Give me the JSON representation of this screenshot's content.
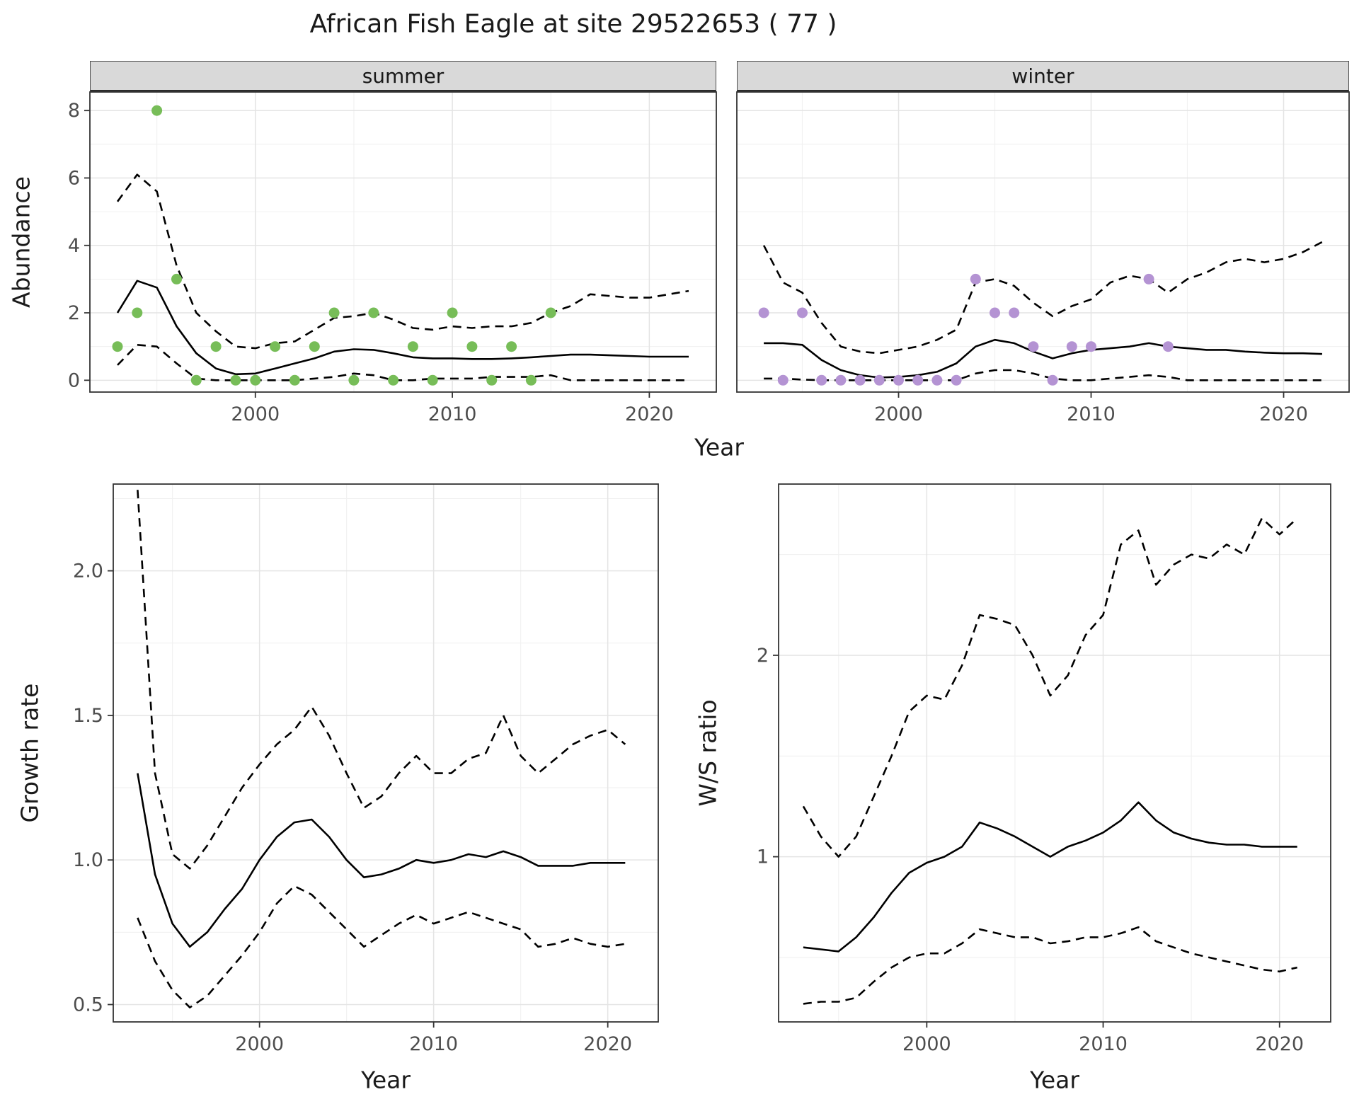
{
  "title": "African Fish Eagle at site 29522653 ( 77 )",
  "top_row": {
    "ylabel": "Abundance",
    "xlabel": "Year",
    "facets": [
      "summer",
      "winter"
    ]
  },
  "bottom_left": {
    "ylabel": "Growth rate",
    "xlabel": "Year"
  },
  "bottom_right": {
    "ylabel": "W/S ratio",
    "xlabel": "Year"
  },
  "colors": {
    "summer_points": "#77bd58",
    "winter_points": "#b493d3",
    "line": "#000000",
    "grid_major": "#e4e4e4",
    "grid_minor": "#f1f1f1",
    "strip_fill": "#d9d9d9"
  },
  "chart_data": [
    {
      "type": "line",
      "title": "summer",
      "xlabel": "Year",
      "ylabel": "Abundance",
      "xlim": [
        1991.6,
        2023.4
      ],
      "ylim": [
        -0.35,
        8.55
      ],
      "xticks": [
        2000,
        2010,
        2020
      ],
      "xtick_labels": [
        "2000",
        "2010",
        "2020"
      ],
      "yticks": [
        0,
        2,
        4,
        6,
        8
      ],
      "ytick_labels": [
        "0",
        "2",
        "4",
        "6",
        "8"
      ],
      "xminor": [
        1995,
        2005,
        2015
      ],
      "yminor": [
        1,
        3,
        5,
        7
      ],
      "x": [
        1993,
        1994,
        1995,
        1996,
        1997,
        1998,
        1999,
        2000,
        2001,
        2002,
        2003,
        2004,
        2005,
        2006,
        2007,
        2008,
        2009,
        2010,
        2011,
        2012,
        2013,
        2014,
        2015,
        2016,
        2017,
        2018,
        2019,
        2020,
        2021,
        2022
      ],
      "series": [
        {
          "name": "fit",
          "style": "solid",
          "values": [
            2.0,
            2.95,
            2.75,
            1.6,
            0.8,
            0.35,
            0.18,
            0.2,
            0.35,
            0.5,
            0.65,
            0.85,
            0.92,
            0.9,
            0.8,
            0.68,
            0.65,
            0.65,
            0.63,
            0.63,
            0.65,
            0.68,
            0.72,
            0.76,
            0.76,
            0.74,
            0.72,
            0.7,
            0.7,
            0.7
          ]
        },
        {
          "name": "upper_ci",
          "style": "dashed",
          "values": [
            5.3,
            6.1,
            5.6,
            3.4,
            2.0,
            1.45,
            1.0,
            0.95,
            1.1,
            1.15,
            1.5,
            1.85,
            1.9,
            2.0,
            1.8,
            1.55,
            1.5,
            1.6,
            1.55,
            1.6,
            1.6,
            1.7,
            2.0,
            2.2,
            2.55,
            2.5,
            2.45,
            2.45,
            2.55,
            2.65
          ]
        },
        {
          "name": "lower_ci",
          "style": "dashed",
          "values": [
            0.45,
            1.05,
            1.0,
            0.5,
            0.05,
            0,
            0,
            0,
            0,
            0,
            0.05,
            0.1,
            0.2,
            0.15,
            0,
            0,
            0.05,
            0.05,
            0.05,
            0.1,
            0.1,
            0.1,
            0.15,
            0,
            0,
            0,
            0,
            0,
            0,
            0
          ]
        }
      ],
      "points": {
        "name": "observed-summer",
        "x": [
          1993,
          1994,
          1995,
          1996,
          1997,
          1998,
          1999,
          2000,
          2001,
          2002,
          2003,
          2004,
          2005,
          2006,
          2007,
          2008,
          2009,
          2010,
          2011,
          2012,
          2013,
          2014,
          2015
        ],
        "y": [
          1,
          2,
          8,
          3,
          0,
          1,
          0,
          0,
          1,
          0,
          1,
          2,
          0,
          2,
          0,
          1,
          0,
          2,
          1,
          0,
          1,
          0,
          2
        ]
      }
    },
    {
      "type": "line",
      "title": "winter",
      "xlabel": "Year",
      "ylabel": "Abundance",
      "xlim": [
        1991.6,
        2023.4
      ],
      "ylim": [
        -0.35,
        8.55
      ],
      "xticks": [
        2000,
        2010,
        2020
      ],
      "xtick_labels": [
        "2000",
        "2010",
        "2020"
      ],
      "yticks": [
        0,
        2,
        4,
        6,
        8
      ],
      "ytick_labels": [
        "0",
        "2",
        "4",
        "6",
        "8"
      ],
      "xminor": [
        1995,
        2005,
        2015
      ],
      "yminor": [
        1,
        3,
        5,
        7
      ],
      "x": [
        1993,
        1994,
        1995,
        1996,
        1997,
        1998,
        1999,
        2000,
        2001,
        2002,
        2003,
        2004,
        2005,
        2006,
        2007,
        2008,
        2009,
        2010,
        2011,
        2012,
        2013,
        2014,
        2015,
        2016,
        2017,
        2018,
        2019,
        2020,
        2021,
        2022
      ],
      "series": [
        {
          "name": "fit",
          "style": "solid",
          "values": [
            1.1,
            1.1,
            1.05,
            0.6,
            0.3,
            0.15,
            0.08,
            0.1,
            0.15,
            0.25,
            0.5,
            1.0,
            1.2,
            1.1,
            0.85,
            0.65,
            0.8,
            0.9,
            0.95,
            1.0,
            1.1,
            1.0,
            0.95,
            0.9,
            0.9,
            0.85,
            0.82,
            0.8,
            0.8,
            0.78
          ]
        },
        {
          "name": "upper_ci",
          "style": "dashed",
          "values": [
            4.0,
            2.9,
            2.6,
            1.7,
            1.0,
            0.85,
            0.8,
            0.9,
            1.0,
            1.2,
            1.5,
            2.9,
            3.0,
            2.8,
            2.3,
            1.9,
            2.2,
            2.4,
            2.9,
            3.1,
            3.0,
            2.6,
            3.0,
            3.2,
            3.5,
            3.6,
            3.5,
            3.6,
            3.8,
            4.1
          ]
        },
        {
          "name": "lower_ci",
          "style": "dashed",
          "values": [
            0.05,
            0.05,
            0.02,
            0,
            0,
            0,
            0,
            0,
            0,
            0,
            0,
            0.2,
            0.3,
            0.3,
            0.2,
            0.05,
            0,
            0,
            0.05,
            0.1,
            0.15,
            0.1,
            0,
            0,
            0,
            0,
            0,
            0,
            0,
            0
          ]
        }
      ],
      "points": {
        "name": "observed-winter",
        "x": [
          1993,
          1994,
          1995,
          1996,
          1997,
          1998,
          1999,
          2000,
          2001,
          2002,
          2003,
          2004,
          2005,
          2006,
          2007,
          2008,
          2009,
          2010,
          2013,
          2014
        ],
        "y": [
          2,
          0,
          2,
          0,
          0,
          0,
          0,
          0,
          0,
          0,
          0,
          3,
          2,
          2,
          1,
          0,
          1,
          1,
          3,
          1
        ]
      }
    },
    {
      "type": "line",
      "title": "Growth rate",
      "xlabel": "Year",
      "ylabel": "Growth rate",
      "xlim": [
        1991.6,
        2022.9
      ],
      "ylim": [
        0.44,
        2.3
      ],
      "xticks": [
        2000,
        2010,
        2020
      ],
      "xtick_labels": [
        "2000",
        "2010",
        "2020"
      ],
      "yticks": [
        0.5,
        1.0,
        1.5,
        2.0
      ],
      "ytick_labels": [
        "0.5",
        "1.0",
        "1.5",
        "2.0"
      ],
      "xminor": [
        1995,
        2005,
        2015
      ],
      "yminor": [
        0.75,
        1.25,
        1.75,
        2.25
      ],
      "x": [
        1993,
        1994,
        1995,
        1996,
        1997,
        1998,
        1999,
        2000,
        2001,
        2002,
        2003,
        2004,
        2005,
        2006,
        2007,
        2008,
        2009,
        2010,
        2011,
        2012,
        2013,
        2014,
        2015,
        2016,
        2017,
        2018,
        2019,
        2020,
        2021
      ],
      "series": [
        {
          "name": "fit",
          "style": "solid",
          "values": [
            1.3,
            0.95,
            0.78,
            0.7,
            0.75,
            0.83,
            0.9,
            1.0,
            1.08,
            1.13,
            1.14,
            1.08,
            1.0,
            0.94,
            0.95,
            0.97,
            1.0,
            0.99,
            1.0,
            1.02,
            1.01,
            1.03,
            1.01,
            0.98,
            0.98,
            0.98,
            0.99,
            0.99,
            0.99
          ]
        },
        {
          "name": "upper_ci",
          "style": "dashed",
          "values": [
            2.28,
            1.3,
            1.02,
            0.97,
            1.05,
            1.15,
            1.25,
            1.33,
            1.4,
            1.45,
            1.53,
            1.43,
            1.3,
            1.18,
            1.22,
            1.3,
            1.36,
            1.3,
            1.3,
            1.35,
            1.37,
            1.5,
            1.36,
            1.3,
            1.35,
            1.4,
            1.43,
            1.45,
            1.4
          ]
        },
        {
          "name": "lower_ci",
          "style": "dashed",
          "values": [
            0.8,
            0.65,
            0.55,
            0.49,
            0.53,
            0.6,
            0.67,
            0.75,
            0.85,
            0.91,
            0.88,
            0.82,
            0.76,
            0.7,
            0.74,
            0.78,
            0.81,
            0.78,
            0.8,
            0.82,
            0.8,
            0.78,
            0.76,
            0.7,
            0.71,
            0.73,
            0.71,
            0.7,
            0.71
          ]
        }
      ]
    },
    {
      "type": "line",
      "title": "W/S ratio",
      "xlabel": "Year",
      "ylabel": "W/S ratio",
      "xlim": [
        1991.6,
        2022.9
      ],
      "ylim": [
        0.18,
        2.85
      ],
      "xticks": [
        2000,
        2010,
        2020
      ],
      "xtick_labels": [
        "2000",
        "2010",
        "2020"
      ],
      "yticks": [
        1,
        2
      ],
      "ytick_labels": [
        "1",
        "2"
      ],
      "xminor": [
        1995,
        2005,
        2015
      ],
      "yminor": [
        0.5,
        1.5,
        2.5
      ],
      "x": [
        1993,
        1994,
        1995,
        1996,
        1997,
        1998,
        1999,
        2000,
        2001,
        2002,
        2003,
        2004,
        2005,
        2006,
        2007,
        2008,
        2009,
        2010,
        2011,
        2012,
        2013,
        2014,
        2015,
        2016,
        2017,
        2018,
        2019,
        2020,
        2021
      ],
      "series": [
        {
          "name": "fit",
          "style": "solid",
          "values": [
            0.55,
            0.54,
            0.53,
            0.6,
            0.7,
            0.82,
            0.92,
            0.97,
            1.0,
            1.05,
            1.17,
            1.14,
            1.1,
            1.05,
            1.0,
            1.05,
            1.08,
            1.12,
            1.18,
            1.27,
            1.18,
            1.12,
            1.09,
            1.07,
            1.06,
            1.06,
            1.05,
            1.05,
            1.05
          ]
        },
        {
          "name": "upper_ci",
          "style": "dashed",
          "values": [
            1.25,
            1.1,
            1.0,
            1.1,
            1.3,
            1.5,
            1.72,
            1.8,
            1.78,
            1.95,
            2.2,
            2.18,
            2.15,
            2.0,
            1.8,
            1.9,
            2.1,
            2.2,
            2.55,
            2.62,
            2.35,
            2.45,
            2.5,
            2.48,
            2.55,
            2.5,
            2.68,
            2.6,
            2.68
          ]
        },
        {
          "name": "lower_ci",
          "style": "dashed",
          "values": [
            0.27,
            0.28,
            0.28,
            0.3,
            0.38,
            0.45,
            0.5,
            0.52,
            0.52,
            0.57,
            0.64,
            0.62,
            0.6,
            0.6,
            0.57,
            0.58,
            0.6,
            0.6,
            0.62,
            0.65,
            0.58,
            0.55,
            0.52,
            0.5,
            0.48,
            0.46,
            0.44,
            0.43,
            0.45
          ]
        }
      ]
    }
  ]
}
